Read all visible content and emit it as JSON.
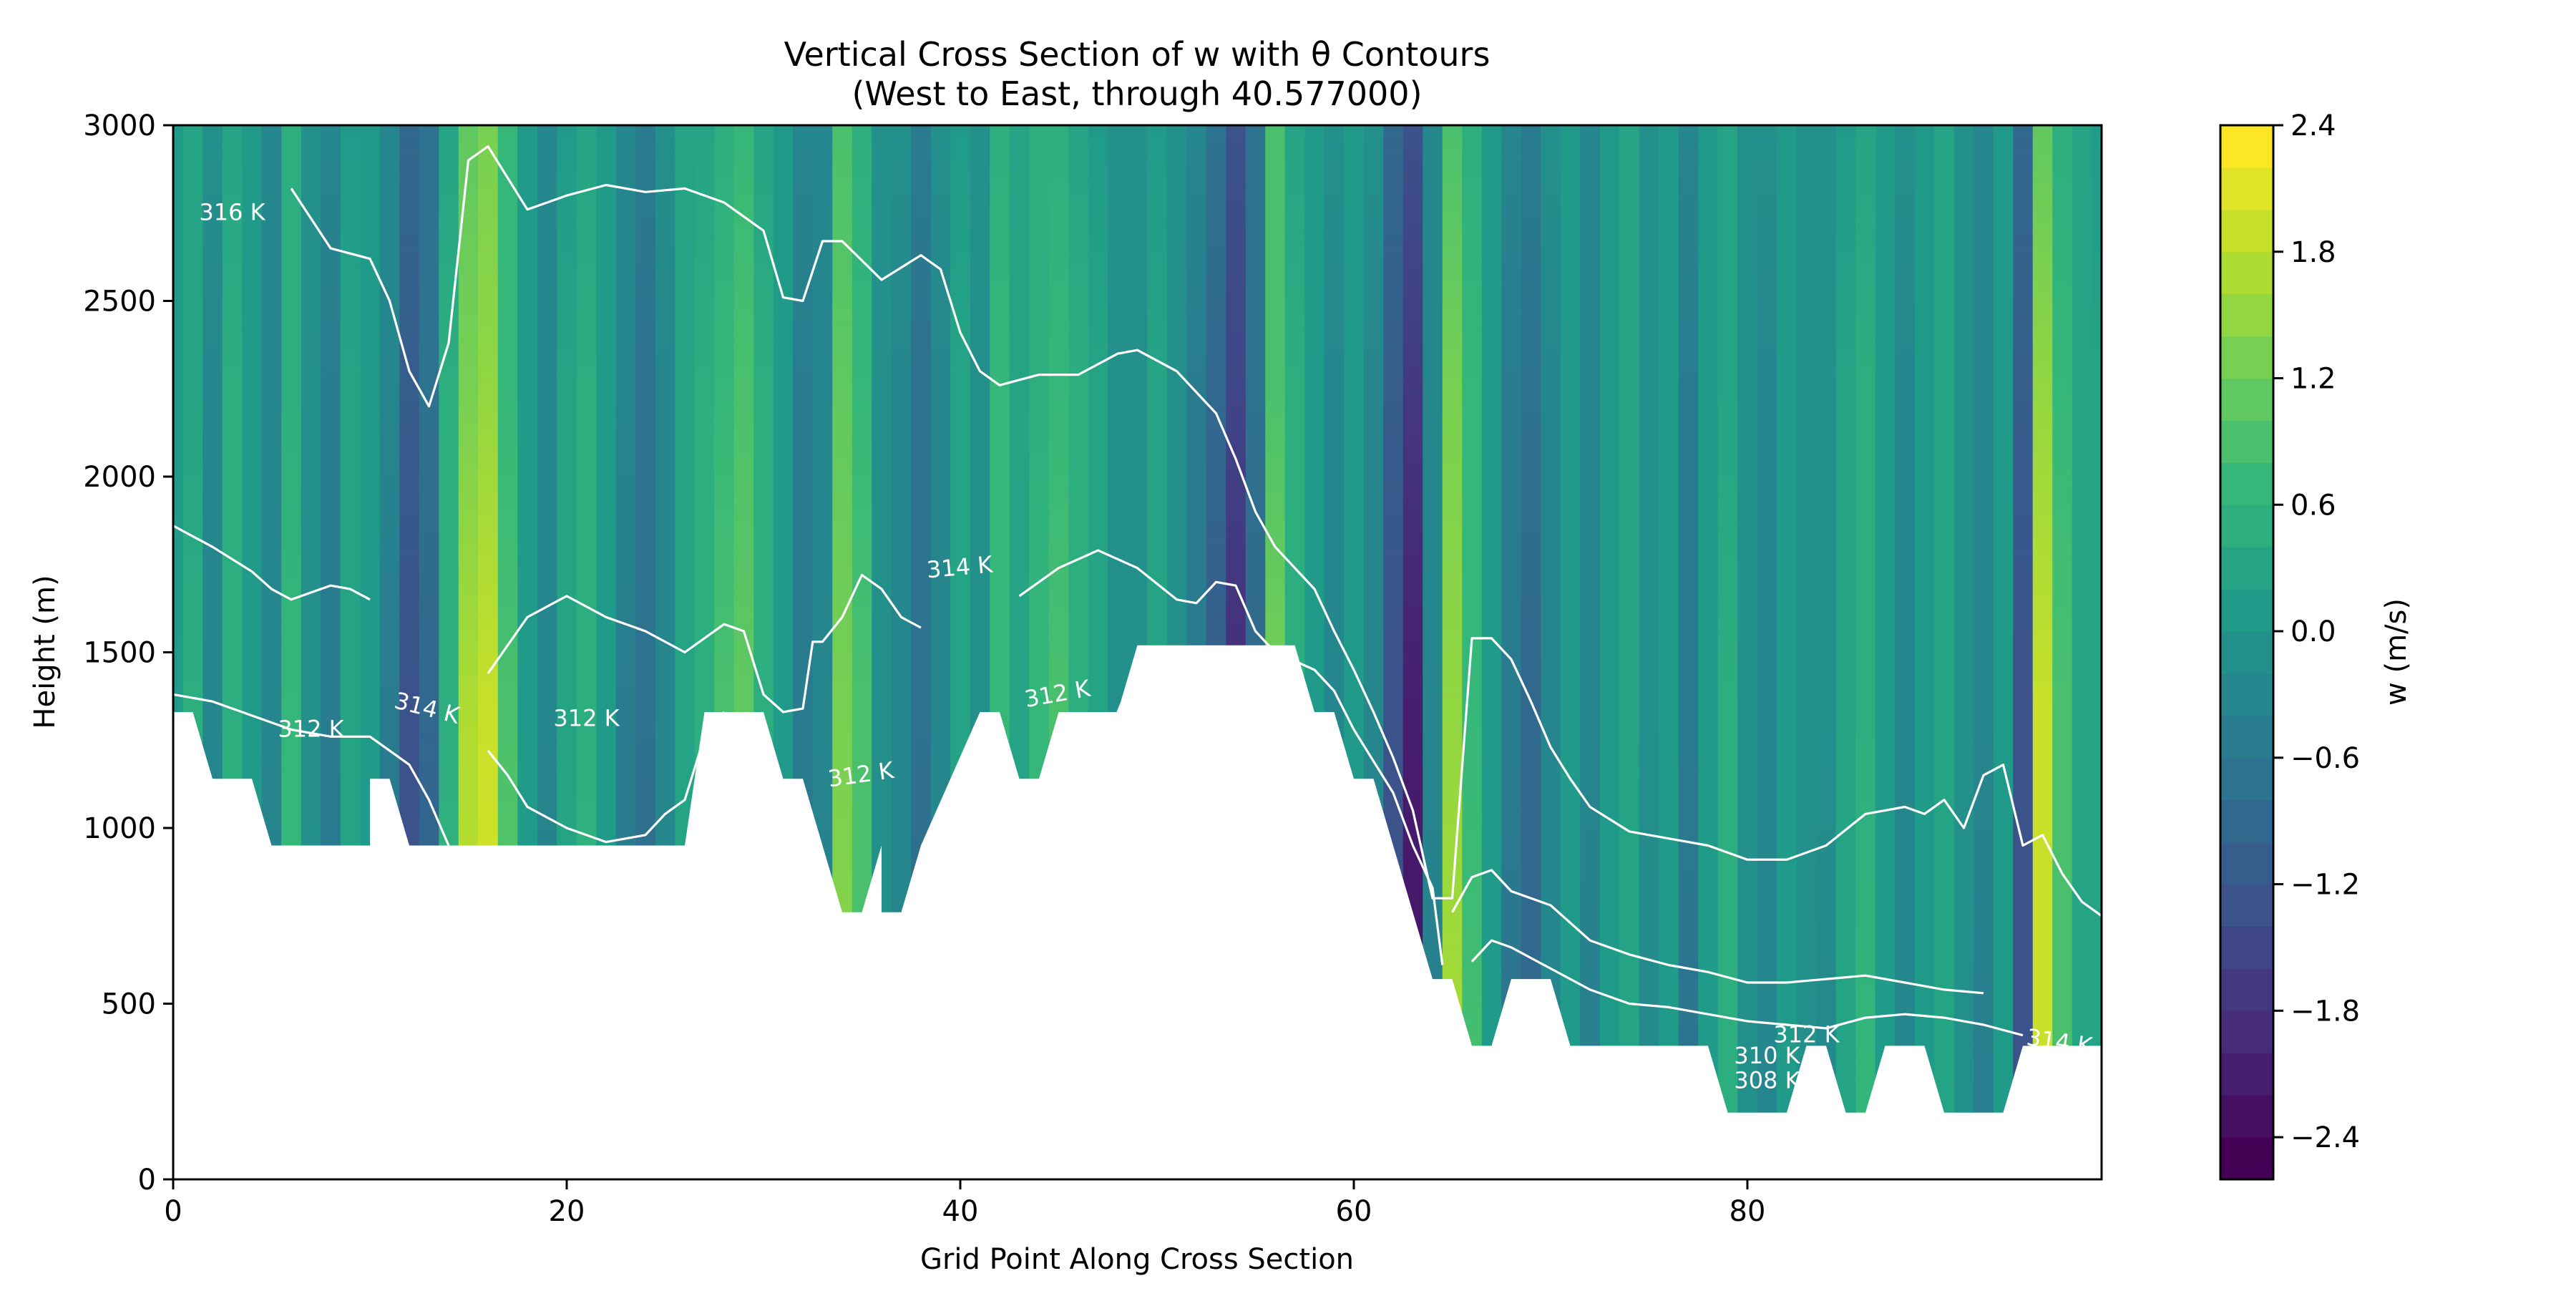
{
  "chart_data": {
    "type": "heatmap",
    "title_line1": "Vertical Cross Section of w with θ Contours",
    "title_line2": "(West to East, through 40.577000)",
    "xlabel": "Grid Point Along Cross Section",
    "ylabel": "Height (m)",
    "xlim": [
      0,
      98
    ],
    "ylim": [
      0,
      3000
    ],
    "x_ticks": [
      0,
      20,
      40,
      60,
      80
    ],
    "x_tick_labels": [
      "0",
      "20",
      "40",
      "60",
      "80"
    ],
    "y_ticks": [
      0,
      500,
      1000,
      1500,
      2000,
      2500,
      3000
    ],
    "y_tick_labels": [
      "0",
      "500",
      "1000",
      "1500",
      "2000",
      "2500",
      "3000"
    ],
    "colorbar": {
      "label": "w (m/s)",
      "range": [
        -2.6,
        2.4
      ],
      "ticks": [
        2.4,
        1.8,
        1.2,
        0.6,
        0.0,
        -0.6,
        -1.2,
        -1.8,
        -2.4
      ],
      "tick_labels": [
        "2.4",
        "1.8",
        "1.2",
        "0.6",
        "0.0",
        "−0.6",
        "−1.2",
        "−1.8",
        "−2.4"
      ],
      "colormap": "viridis",
      "levels": 25
    },
    "terrain": [
      [
        0,
        1330
      ],
      [
        1,
        1330
      ],
      [
        2,
        1140
      ],
      [
        4,
        1140
      ],
      [
        5,
        950
      ],
      [
        10,
        950
      ],
      [
        10,
        1140
      ],
      [
        11,
        1140
      ],
      [
        12,
        950
      ],
      [
        26,
        950
      ],
      [
        27,
        1330
      ],
      [
        30,
        1330
      ],
      [
        31,
        1140
      ],
      [
        32,
        1140
      ],
      [
        34,
        760
      ],
      [
        35,
        760
      ],
      [
        36,
        950
      ],
      [
        36,
        760
      ],
      [
        37,
        760
      ],
      [
        38,
        950
      ],
      [
        41,
        1330
      ],
      [
        42,
        1330
      ],
      [
        43,
        1140
      ],
      [
        44,
        1140
      ],
      [
        45,
        1330
      ],
      [
        48,
        1330
      ],
      [
        49,
        1520
      ],
      [
        57,
        1520
      ],
      [
        58,
        1330
      ],
      [
        59,
        1330
      ],
      [
        60,
        1140
      ],
      [
        61,
        1140
      ],
      [
        64,
        570
      ],
      [
        65,
        570
      ],
      [
        66,
        380
      ],
      [
        67,
        380
      ],
      [
        68,
        570
      ],
      [
        70,
        570
      ],
      [
        71,
        380
      ],
      [
        78,
        380
      ],
      [
        79,
        190
      ],
      [
        82,
        190
      ],
      [
        83,
        380
      ],
      [
        84,
        380
      ],
      [
        85,
        190
      ],
      [
        86,
        190
      ],
      [
        87,
        380
      ],
      [
        89,
        380
      ],
      [
        90,
        190
      ],
      [
        93,
        190
      ],
      [
        94,
        380
      ],
      [
        98,
        380
      ]
    ],
    "w_columns": [
      {
        "x": 0,
        "w": 0.2
      },
      {
        "x": 1,
        "w": 0.5
      },
      {
        "x": 2,
        "w": -0.3
      },
      {
        "x": 3,
        "w": 0.6
      },
      {
        "x": 4,
        "w": 0.1
      },
      {
        "x": 5,
        "w": -0.4
      },
      {
        "x": 6,
        "w": 0.7
      },
      {
        "x": 7,
        "w": 0.0
      },
      {
        "x": 8,
        "w": -0.6
      },
      {
        "x": 9,
        "w": 0.3
      },
      {
        "x": 10,
        "w": 0.2
      },
      {
        "x": 11,
        "w": -0.5
      },
      {
        "x": 12,
        "w": -1.3
      },
      {
        "x": 13,
        "w": -1.0
      },
      {
        "x": 14,
        "w": 0.6
      },
      {
        "x": 15,
        "w": 1.8
      },
      {
        "x": 16,
        "w": 2.0
      },
      {
        "x": 17,
        "w": 1.0
      },
      {
        "x": 18,
        "w": 0.2
      },
      {
        "x": 19,
        "w": -0.4
      },
      {
        "x": 20,
        "w": 0.3
      },
      {
        "x": 21,
        "w": 0.6
      },
      {
        "x": 22,
        "w": 0.2
      },
      {
        "x": 23,
        "w": -0.5
      },
      {
        "x": 24,
        "w": -0.8
      },
      {
        "x": 25,
        "w": -0.3
      },
      {
        "x": 26,
        "w": 0.4
      },
      {
        "x": 27,
        "w": 0.6
      },
      {
        "x": 28,
        "w": 0.9
      },
      {
        "x": 29,
        "w": 1.1
      },
      {
        "x": 30,
        "w": 0.6
      },
      {
        "x": 31,
        "w": 0.1
      },
      {
        "x": 32,
        "w": -0.6
      },
      {
        "x": 33,
        "w": -0.4
      },
      {
        "x": 34,
        "w": 1.4
      },
      {
        "x": 35,
        "w": 0.9
      },
      {
        "x": 36,
        "w": 0.0
      },
      {
        "x": 37,
        "w": -0.3
      },
      {
        "x": 38,
        "w": -0.8
      },
      {
        "x": 39,
        "w": -0.3
      },
      {
        "x": 40,
        "w": 0.3
      },
      {
        "x": 41,
        "w": -0.2
      },
      {
        "x": 42,
        "w": 0.8
      },
      {
        "x": 43,
        "w": 0.4
      },
      {
        "x": 44,
        "w": 0.7
      },
      {
        "x": 45,
        "w": 0.9
      },
      {
        "x": 46,
        "w": 0.6
      },
      {
        "x": 47,
        "w": 0.3
      },
      {
        "x": 48,
        "w": 0.0
      },
      {
        "x": 49,
        "w": -0.2
      },
      {
        "x": 50,
        "w": 0.3
      },
      {
        "x": 51,
        "w": 0.0
      },
      {
        "x": 52,
        "w": -0.6
      },
      {
        "x": 53,
        "w": -1.2
      },
      {
        "x": 54,
        "w": -2.0
      },
      {
        "x": 55,
        "w": -1.0
      },
      {
        "x": 56,
        "w": 1.3
      },
      {
        "x": 57,
        "w": 0.6
      },
      {
        "x": 58,
        "w": 0.2
      },
      {
        "x": 59,
        "w": -0.3
      },
      {
        "x": 60,
        "w": 0.2
      },
      {
        "x": 61,
        "w": -0.3
      },
      {
        "x": 62,
        "w": -1.3
      },
      {
        "x": 63,
        "w": -2.2
      },
      {
        "x": 64,
        "w": -0.4
      },
      {
        "x": 65,
        "w": 1.6
      },
      {
        "x": 66,
        "w": 0.8
      },
      {
        "x": 67,
        "w": 0.2
      },
      {
        "x": 68,
        "w": -0.6
      },
      {
        "x": 69,
        "w": -0.9
      },
      {
        "x": 70,
        "w": -0.3
      },
      {
        "x": 71,
        "w": 0.2
      },
      {
        "x": 72,
        "w": -0.4
      },
      {
        "x": 73,
        "w": 0.1
      },
      {
        "x": 74,
        "w": 0.4
      },
      {
        "x": 75,
        "w": -0.2
      },
      {
        "x": 76,
        "w": 0.1
      },
      {
        "x": 77,
        "w": -0.6
      },
      {
        "x": 78,
        "w": 0.2
      },
      {
        "x": 79,
        "w": 0.5
      },
      {
        "x": 80,
        "w": 0.0
      },
      {
        "x": 81,
        "w": -0.3
      },
      {
        "x": 82,
        "w": 0.2
      },
      {
        "x": 83,
        "w": 0.0
      },
      {
        "x": 84,
        "w": -0.2
      },
      {
        "x": 85,
        "w": 0.3
      },
      {
        "x": 86,
        "w": 0.6
      },
      {
        "x": 87,
        "w": 0.1
      },
      {
        "x": 88,
        "w": -0.3
      },
      {
        "x": 89,
        "w": 0.2
      },
      {
        "x": 90,
        "w": 0.4
      },
      {
        "x": 91,
        "w": 0.0
      },
      {
        "x": 92,
        "w": -0.4
      },
      {
        "x": 93,
        "w": 0.2
      },
      {
        "x": 94,
        "w": -1.3
      },
      {
        "x": 95,
        "w": 1.9
      },
      {
        "x": 96,
        "w": 0.9
      },
      {
        "x": 97,
        "w": 0.4
      },
      {
        "x": 98,
        "w": 0.3
      }
    ],
    "theta_contours": [
      {
        "label": "316 K",
        "points": [
          [
            6,
            2820
          ],
          [
            8,
            2650
          ],
          [
            10,
            2620
          ],
          [
            11,
            2500
          ],
          [
            12,
            2300
          ],
          [
            13,
            2200
          ],
          [
            14,
            2380
          ],
          [
            15,
            2900
          ],
          [
            16,
            2940
          ],
          [
            18,
            2760
          ],
          [
            20,
            2800
          ],
          [
            22,
            2830
          ],
          [
            24,
            2810
          ],
          [
            26,
            2820
          ],
          [
            28,
            2780
          ],
          [
            30,
            2700
          ],
          [
            31,
            2510
          ],
          [
            32,
            2500
          ],
          [
            33,
            2670
          ],
          [
            34,
            2670
          ],
          [
            36,
            2560
          ],
          [
            38,
            2630
          ],
          [
            39,
            2590
          ],
          [
            40,
            2410
          ],
          [
            41,
            2300
          ],
          [
            42,
            2260
          ],
          [
            44,
            2290
          ],
          [
            46,
            2290
          ],
          [
            48,
            2350
          ],
          [
            49,
            2360
          ],
          [
            51,
            2300
          ],
          [
            53,
            2180
          ],
          [
            54,
            2050
          ],
          [
            55,
            1900
          ],
          [
            56,
            1800
          ],
          [
            58,
            1680
          ],
          [
            59,
            1560
          ],
          [
            60,
            1450
          ],
          [
            61,
            1330
          ],
          [
            62,
            1200
          ],
          [
            63,
            1050
          ],
          [
            64,
            800
          ],
          [
            65,
            800
          ],
          [
            66,
            1540
          ],
          [
            67,
            1540
          ],
          [
            68,
            1480
          ],
          [
            69,
            1360
          ],
          [
            70,
            1230
          ],
          [
            71,
            1140
          ],
          [
            72,
            1060
          ],
          [
            74,
            990
          ],
          [
            76,
            970
          ],
          [
            78,
            950
          ],
          [
            80,
            910
          ],
          [
            82,
            910
          ],
          [
            84,
            950
          ],
          [
            86,
            1040
          ],
          [
            88,
            1060
          ],
          [
            89,
            1040
          ],
          [
            90,
            1080
          ],
          [
            91,
            1000
          ],
          [
            92,
            1150
          ],
          [
            93,
            1180
          ],
          [
            94,
            950
          ],
          [
            95,
            980
          ],
          [
            96,
            870
          ],
          [
            97,
            790
          ],
          [
            98,
            750
          ]
        ]
      },
      {
        "label": "",
        "points": [
          [
            0,
            1860
          ],
          [
            2,
            1800
          ],
          [
            4,
            1730
          ],
          [
            5,
            1680
          ],
          [
            6,
            1650
          ],
          [
            8,
            1690
          ],
          [
            9,
            1680
          ],
          [
            10,
            1650
          ]
        ]
      },
      {
        "label": "314 K",
        "points": [
          [
            16,
            1440
          ],
          [
            18,
            1600
          ],
          [
            20,
            1660
          ],
          [
            22,
            1600
          ],
          [
            24,
            1560
          ],
          [
            26,
            1500
          ],
          [
            28,
            1580
          ],
          [
            29,
            1560
          ],
          [
            30,
            1380
          ],
          [
            31,
            1330
          ],
          [
            32,
            1340
          ],
          [
            32.5,
            1530
          ],
          [
            33,
            1530
          ],
          [
            34,
            1600
          ],
          [
            35,
            1720
          ],
          [
            36,
            1680
          ],
          [
            37,
            1600
          ],
          [
            38,
            1570
          ]
        ]
      },
      {
        "label": "",
        "points": [
          [
            43,
            1660
          ],
          [
            45,
            1740
          ],
          [
            47,
            1790
          ],
          [
            49,
            1740
          ],
          [
            51,
            1650
          ],
          [
            52,
            1640
          ],
          [
            53,
            1700
          ],
          [
            54,
            1690
          ],
          [
            55,
            1560
          ],
          [
            56,
            1500
          ],
          [
            58,
            1450
          ],
          [
            59,
            1390
          ],
          [
            60,
            1280
          ],
          [
            61,
            1190
          ],
          [
            62,
            1100
          ],
          [
            63,
            950
          ],
          [
            64,
            830
          ],
          [
            64.5,
            610
          ]
        ]
      },
      {
        "label": "312 K",
        "points": [
          [
            0,
            1380
          ],
          [
            2,
            1360
          ],
          [
            4,
            1320
          ],
          [
            6,
            1280
          ],
          [
            8,
            1260
          ],
          [
            10,
            1260
          ],
          [
            12,
            1180
          ],
          [
            13,
            1080
          ],
          [
            14,
            950
          ]
        ]
      },
      {
        "label": "",
        "points": [
          [
            16,
            1220
          ],
          [
            17,
            1150
          ],
          [
            18,
            1060
          ],
          [
            20,
            1000
          ],
          [
            22,
            960
          ],
          [
            24,
            980
          ],
          [
            25,
            1040
          ],
          [
            26,
            1080
          ],
          [
            27,
            1260
          ],
          [
            28,
            1330
          ]
        ]
      },
      {
        "label": "312 K",
        "points": [
          [
            48,
            1330
          ],
          [
            49,
            1460
          ]
        ]
      },
      {
        "label": "310 K",
        "points": [
          [
            65,
            760
          ],
          [
            66,
            860
          ],
          [
            67,
            880
          ],
          [
            68,
            820
          ],
          [
            70,
            780
          ],
          [
            72,
            680
          ],
          [
            74,
            640
          ],
          [
            76,
            610
          ],
          [
            78,
            590
          ],
          [
            80,
            560
          ],
          [
            82,
            560
          ],
          [
            84,
            570
          ],
          [
            86,
            580
          ],
          [
            88,
            560
          ],
          [
            90,
            540
          ],
          [
            92,
            530
          ]
        ]
      },
      {
        "label": "312 K",
        "points": [
          [
            66,
            620
          ],
          [
            67,
            680
          ],
          [
            68,
            660
          ],
          [
            70,
            600
          ],
          [
            72,
            540
          ],
          [
            74,
            500
          ],
          [
            76,
            490
          ],
          [
            78,
            470
          ],
          [
            80,
            450
          ],
          [
            82,
            440
          ],
          [
            84,
            430
          ],
          [
            86,
            460
          ],
          [
            88,
            470
          ],
          [
            90,
            460
          ],
          [
            92,
            440
          ],
          [
            94,
            410
          ]
        ]
      }
    ],
    "contour_labels": [
      {
        "text": "316 K",
        "x": 3.0,
        "y": 2730,
        "rot": 0
      },
      {
        "text": "314 K",
        "x": 12.8,
        "y": 1320,
        "rot": 14
      },
      {
        "text": "312 K",
        "x": 7.0,
        "y": 1260,
        "rot": 0
      },
      {
        "text": "312 K",
        "x": 21.0,
        "y": 1290,
        "rot": 0
      },
      {
        "text": "314 K",
        "x": 40.0,
        "y": 1720,
        "rot": -5
      },
      {
        "text": "312 K",
        "x": 45.0,
        "y": 1360,
        "rot": -10
      },
      {
        "text": "312 K",
        "x": 35.0,
        "y": 1130,
        "rot": -8
      },
      {
        "text": "312 K",
        "x": 83.0,
        "y": 390,
        "rot": 0
      },
      {
        "text": "310 K",
        "x": 81.0,
        "y": 330,
        "rot": 0
      },
      {
        "text": "308 K",
        "x": 81.0,
        "y": 260,
        "rot": 0
      },
      {
        "text": "314 K",
        "x": 95.8,
        "y": 370,
        "rot": 8
      }
    ]
  }
}
